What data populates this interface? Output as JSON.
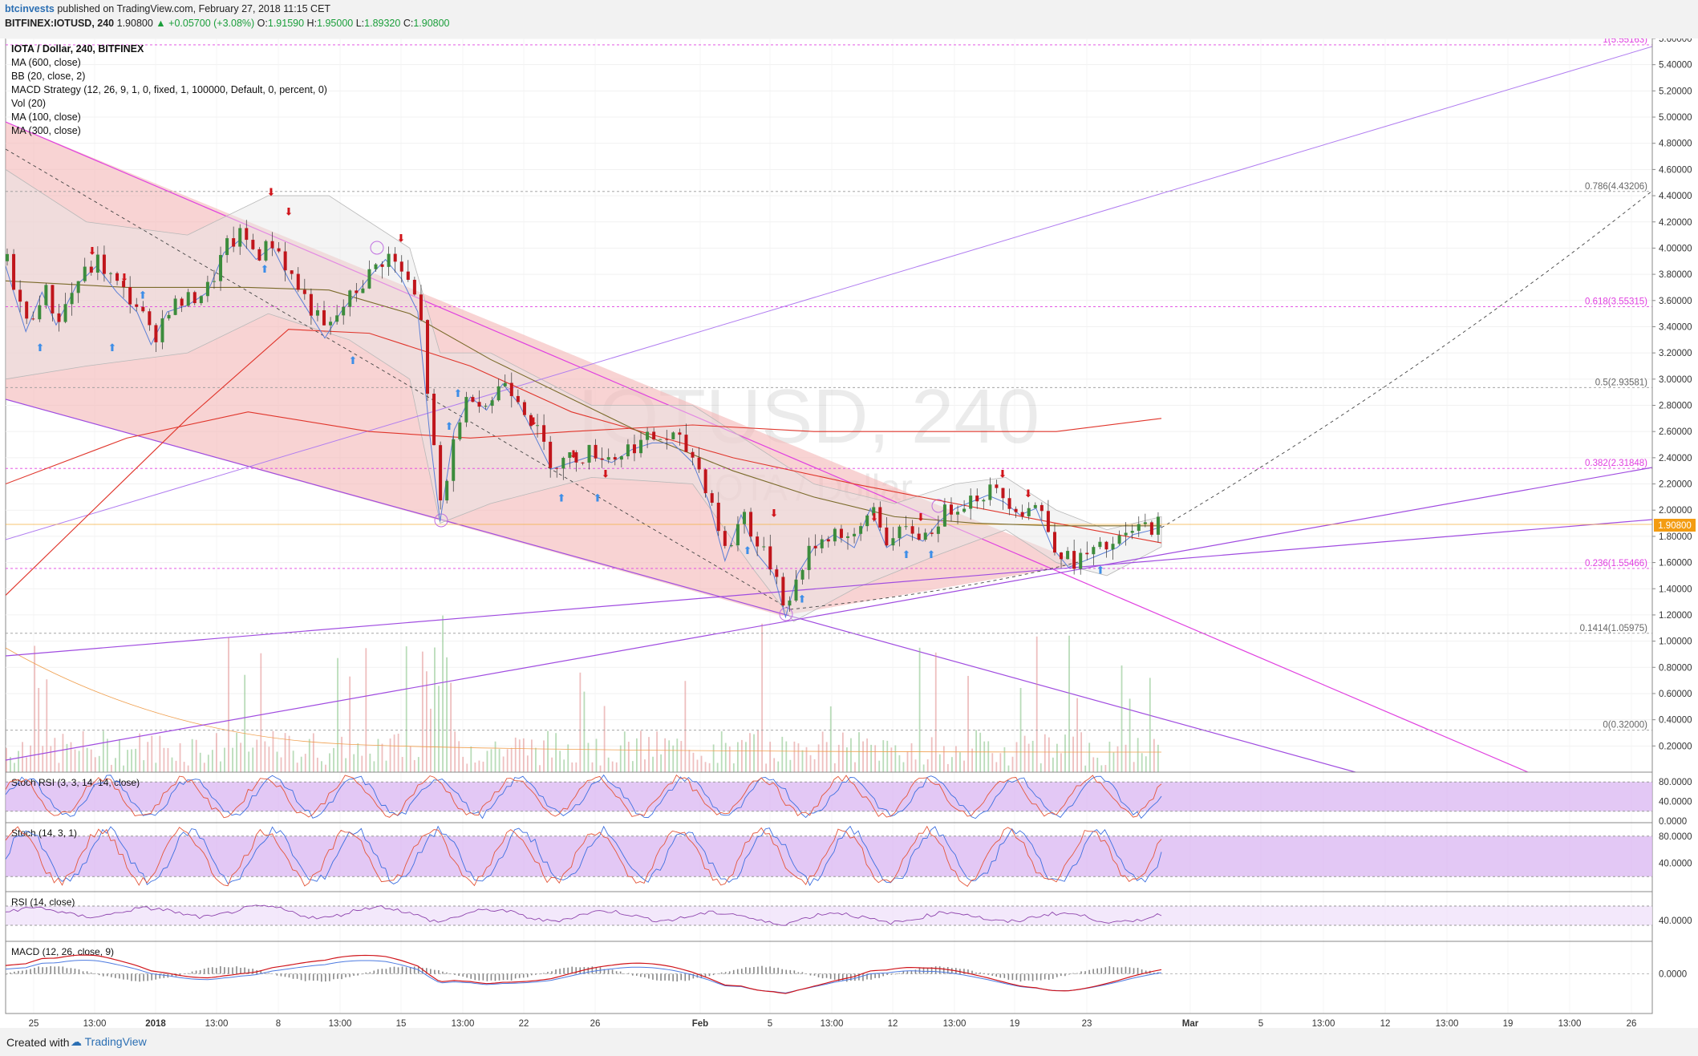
{
  "header": {
    "author": "btcinvests",
    "published": "published on TradingView.com, February 27, 2018 11:15 CET",
    "symbol": "BITFINEX:IOTUSD, 240",
    "last": "1.90800",
    "change": "+0.05700 (+3.08%)",
    "open_label": "O:",
    "open": "1.91590",
    "high_label": "H:",
    "high": "1.95000",
    "low_label": "L:",
    "low": "1.89320",
    "close_label": "C:",
    "close": "1.90800"
  },
  "legend": {
    "title": "IOTA / Dollar, 240, BITFINEX",
    "items": [
      "MA (600, close)",
      "BB (20, close, 2)",
      "MACD Strategy (12, 26, 9, 1, 0, fixed, 1, 100000, Default, 0, percent, 0)",
      "Vol (20)",
      "MA (100, close)",
      "MA (300, close)"
    ]
  },
  "watermark": {
    "main": "IOTUSD, 240",
    "sub": "IOTA / Dollar"
  },
  "price_tag": "1.90800",
  "colors": {
    "up": "#3c8c3c",
    "down": "#c0151b",
    "channel": "#e040e0",
    "trend": "#9c4ce6",
    "fib": "#e040e0",
    "ma_red": "#e0352b",
    "ma_olive": "#7a6a2a",
    "bb_fill": "#e6e6e6",
    "osc_band": "#d9b6f2"
  },
  "chart_data": {
    "type": "candlestick",
    "title": "IOTA / Dollar, 240, BITFINEX",
    "ylim": [
      0.0,
      5.6
    ],
    "y_ticks": [
      "5.60000",
      "5.40000",
      "5.20000",
      "5.00000",
      "4.80000",
      "4.60000",
      "4.40000",
      "4.20000",
      "4.00000",
      "3.80000",
      "3.60000",
      "3.40000",
      "3.20000",
      "3.00000",
      "2.80000",
      "2.60000",
      "2.40000",
      "2.20000",
      "2.00000",
      "1.80000",
      "1.60000",
      "1.40000",
      "1.20000",
      "1.00000",
      "0.80000",
      "0.60000",
      "0.40000",
      "0.20000"
    ],
    "x_ticks": [
      "25",
      "13:00",
      "2018",
      "13:00",
      "8",
      "13:00",
      "15",
      "13:00",
      "22",
      "26",
      "Feb",
      "5",
      "13:00",
      "12",
      "13:00",
      "19",
      "23",
      "Mar",
      "5",
      "13:00",
      "12",
      "13:00",
      "19",
      "13:00",
      "26"
    ],
    "close_path": [
      [
        0,
        3.9
      ],
      [
        10,
        3.4
      ],
      [
        18,
        3.7
      ],
      [
        25,
        3.45
      ],
      [
        35,
        3.75
      ],
      [
        45,
        3.9
      ],
      [
        55,
        3.7
      ],
      [
        65,
        3.55
      ],
      [
        72,
        3.3
      ],
      [
        80,
        3.55
      ],
      [
        90,
        3.6
      ],
      [
        100,
        3.7
      ],
      [
        108,
        4.0
      ],
      [
        116,
        4.1
      ],
      [
        124,
        3.95
      ],
      [
        132,
        4.05
      ],
      [
        140,
        3.8
      ],
      [
        150,
        3.55
      ],
      [
        158,
        3.35
      ],
      [
        166,
        3.55
      ],
      [
        174,
        3.7
      ],
      [
        182,
        3.85
      ],
      [
        188,
        3.95
      ],
      [
        196,
        3.8
      ],
      [
        204,
        3.55
      ],
      [
        210,
        2.6
      ],
      [
        215,
        1.95
      ],
      [
        222,
        2.65
      ],
      [
        230,
        2.9
      ],
      [
        238,
        2.8
      ],
      [
        246,
        3.0
      ],
      [
        254,
        2.85
      ],
      [
        262,
        2.6
      ],
      [
        270,
        2.35
      ],
      [
        280,
        2.4
      ],
      [
        290,
        2.45
      ],
      [
        300,
        2.4
      ],
      [
        310,
        2.5
      ],
      [
        320,
        2.55
      ],
      [
        330,
        2.55
      ],
      [
        340,
        2.4
      ],
      [
        348,
        2.1
      ],
      [
        356,
        1.65
      ],
      [
        364,
        2.0
      ],
      [
        372,
        1.7
      ],
      [
        380,
        1.55
      ],
      [
        386,
        1.22
      ],
      [
        392,
        1.55
      ],
      [
        400,
        1.75
      ],
      [
        410,
        1.85
      ],
      [
        420,
        1.75
      ],
      [
        428,
        2.05
      ],
      [
        436,
        1.75
      ],
      [
        446,
        1.85
      ],
      [
        454,
        1.8
      ],
      [
        462,
        1.95
      ],
      [
        470,
        2.05
      ],
      [
        478,
        2.1
      ],
      [
        486,
        2.15
      ],
      [
        494,
        2.1
      ],
      [
        502,
        2.0
      ],
      [
        510,
        2.05
      ],
      [
        518,
        1.75
      ],
      [
        526,
        1.6
      ],
      [
        534,
        1.65
      ],
      [
        542,
        1.7
      ],
      [
        550,
        1.75
      ],
      [
        558,
        1.85
      ],
      [
        566,
        1.88
      ],
      [
        572,
        1.91
      ]
    ],
    "series": [
      {
        "name": "MA (600, close)",
        "values": [
          [
            0,
            1.35
          ],
          [
            90,
            2.7
          ],
          [
            140,
            3.38
          ],
          [
            180,
            3.35
          ],
          [
            230,
            3.1
          ],
          [
            280,
            2.75
          ],
          [
            326,
            2.55
          ],
          [
            360,
            2.4
          ],
          [
            420,
            2.2
          ],
          [
            470,
            2.05
          ],
          [
            520,
            1.9
          ],
          [
            572,
            1.75
          ]
        ]
      },
      {
        "name": "MA (300, close)",
        "values": [
          [
            0,
            2.2
          ],
          [
            60,
            2.55
          ],
          [
            120,
            2.75
          ],
          [
            180,
            2.6
          ],
          [
            230,
            2.55
          ],
          [
            280,
            2.6
          ],
          [
            340,
            2.65
          ],
          [
            400,
            2.6
          ],
          [
            460,
            2.6
          ],
          [
            520,
            2.6
          ],
          [
            572,
            2.7
          ]
        ]
      },
      {
        "name": "MA (100, close)",
        "values": [
          [
            0,
            3.75
          ],
          [
            60,
            3.7
          ],
          [
            120,
            3.7
          ],
          [
            160,
            3.68
          ],
          [
            200,
            3.5
          ],
          [
            240,
            3.15
          ],
          [
            280,
            2.85
          ],
          [
            320,
            2.55
          ],
          [
            360,
            2.3
          ],
          [
            400,
            2.1
          ],
          [
            440,
            1.95
          ],
          [
            480,
            1.9
          ],
          [
            520,
            1.88
          ],
          [
            572,
            1.88
          ]
        ]
      }
    ],
    "fib_levels": [
      {
        "label": "1(5.55163)",
        "value": 5.55163
      },
      {
        "label": "0.786(4.43206)",
        "value": 4.43206
      },
      {
        "label": "0.618(3.55315)",
        "value": 3.55315
      },
      {
        "label": "0.5(2.93581)",
        "value": 2.93581
      },
      {
        "label": "0.382(2.31848)",
        "value": 2.31848
      },
      {
        "label": "0.236(1.55466)",
        "value": 1.55466
      },
      {
        "label": "0.1414(1.05975)",
        "value": 1.05975
      },
      {
        "label": "0(0.32000)",
        "value": 0.32
      }
    ],
    "panes": [
      {
        "title": "Stoch RSI (3, 3, 14, 14, close)",
        "ticks": [
          "80.0000",
          "40.0000",
          "0.0000"
        ],
        "band": [
          20,
          80
        ]
      },
      {
        "title": "Stoch (14, 3, 1)",
        "ticks": [
          "80.0000",
          "40.0000"
        ],
        "band": [
          20,
          80
        ]
      },
      {
        "title": "RSI (14, close)",
        "ticks": [
          "40.0000"
        ],
        "band": [
          30,
          70
        ]
      },
      {
        "title": "MACD (12, 26, close, 9)",
        "ticks": [
          "0.0000"
        ]
      }
    ]
  },
  "footer": {
    "created": "Created with",
    "brand": "TradingView"
  }
}
